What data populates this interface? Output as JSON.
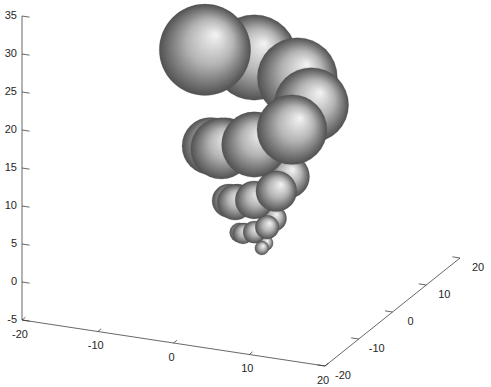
{
  "chart_data": {
    "type": "surface3d",
    "grid": false,
    "color": "#b4b4b4",
    "xlim": [
      -20,
      20
    ],
    "ylim": [
      -20,
      20
    ],
    "zlim": [
      -5,
      35
    ],
    "xticks": [
      -20,
      -10,
      0,
      10,
      20
    ],
    "yticks": [
      -20,
      -10,
      0,
      10,
      20
    ],
    "zticks": [
      -5,
      0,
      5,
      10,
      15,
      20,
      25,
      30,
      35
    ],
    "x": [
      2.95,
      3.01,
      2.28,
      1.11,
      0.18,
      0.11,
      1.06,
      2.59,
      3.8,
      3.9,
      2.65,
      0.66,
      -0.94,
      -1.06,
      0.58,
      3.18,
      5.26,
      5.43,
      3.29,
      -0.12,
      -2.84,
      -3.06,
      -0.26,
      4.2,
      7.75,
      8.03,
      4.38,
      -1.45,
      -6.1
    ],
    "y": [
      -0.46,
      0.56,
      1.38,
      1.44,
      0.6,
      -0.73,
      -1.79,
      -1.88,
      -0.79,
      0.96,
      2.34,
      2.46,
      1.03,
      -1.25,
      -3.06,
      -3.21,
      -1.34,
      1.64,
      4.01,
      4.2,
      1.76,
      -2.14,
      -5.25,
      -5.49,
      -2.3,
      2.8,
      6.87,
      7.18,
      3.01
    ],
    "z": [
      1.0,
      1.3,
      1.62,
      1.95,
      2.31,
      2.7,
      3.09,
      3.55,
      4.0,
      4.52,
      5.05,
      5.63,
      6.25,
      6.9,
      7.59,
      8.34,
      9.15,
      10.04,
      10.95,
      11.93,
      12.97,
      14.11,
      15.32,
      16.59,
      17.96,
      19.43,
      21.03,
      22.69,
      24.48
    ],
    "radius": [
      1.07,
      1.15,
      1.23,
      1.31,
      1.4,
      1.5,
      1.6,
      1.71,
      1.83,
      1.96,
      2.09,
      2.24,
      2.4,
      2.56,
      2.73,
      2.92,
      3.13,
      3.35,
      3.58,
      3.83,
      4.09,
      4.38,
      4.69,
      5.01,
      5.35,
      5.72,
      6.13,
      6.55,
      7.0
    ]
  }
}
